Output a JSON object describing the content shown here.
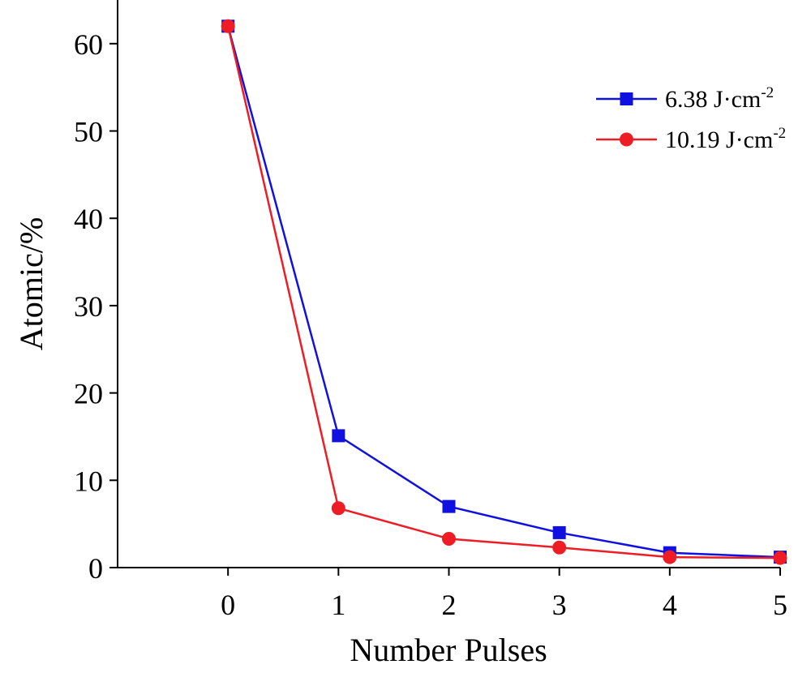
{
  "chart_data": {
    "type": "line",
    "xlabel": "Number Pulses",
    "ylabel": "Atomic/%",
    "x": [
      0,
      1,
      2,
      3,
      4,
      5
    ],
    "xlim": [
      -1,
      5
    ],
    "ylim": [
      0,
      65
    ],
    "xticks": [
      0,
      1,
      2,
      3,
      4,
      5
    ],
    "yticks": [
      0,
      10,
      20,
      30,
      40,
      50,
      60
    ],
    "grid": false,
    "legend_position": "top-right",
    "series": [
      {
        "name": "6.38 J·cm",
        "unit_exponent": "-2",
        "color": "#1010e0",
        "marker": "square",
        "values": [
          62,
          15.1,
          7.0,
          4.0,
          1.7,
          1.2
        ]
      },
      {
        "name": "10.19 J·cm",
        "unit_exponent": "-2",
        "color": "#ee1c24",
        "marker": "circle",
        "values": [
          62,
          6.8,
          3.3,
          2.3,
          1.2,
          1.1
        ]
      }
    ]
  }
}
